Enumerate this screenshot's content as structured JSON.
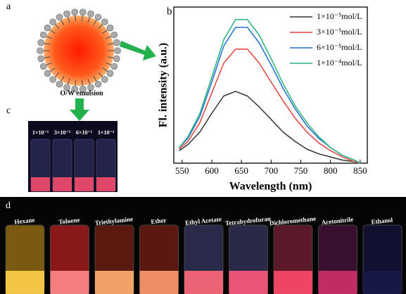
{
  "panel_a": {
    "letter": "a",
    "caption": "O/W emulsion"
  },
  "panel_b_letter": "b",
  "chart_data": {
    "type": "line",
    "x_label": "Wavelength (nm)",
    "y_label": "Fl. intensity (a.u.)",
    "x": [
      545,
      560,
      580,
      600,
      620,
      640,
      660,
      680,
      700,
      720,
      740,
      760,
      780,
      800,
      820,
      840,
      850
    ],
    "series": [
      {
        "name": "1×10⁻⁵mol/L",
        "color": "#333333",
        "values": [
          8,
          12,
          20,
          32,
          43,
          46,
          43,
          36,
          28,
          20,
          14,
          9,
          6,
          4,
          2,
          1,
          0
        ]
      },
      {
        "name": "3×10⁻⁵mol/L",
        "color": "#e8413c",
        "values": [
          9,
          14,
          26,
          45,
          64,
          73,
          73,
          64,
          52,
          40,
          29,
          20,
          13,
          8,
          4,
          1,
          0
        ]
      },
      {
        "name": "6×10⁻⁵mol/L",
        "color": "#1f6fd6",
        "values": [
          10,
          16,
          30,
          52,
          75,
          87,
          87,
          77,
          63,
          48,
          35,
          24,
          16,
          10,
          5,
          2,
          0
        ]
      },
      {
        "name": "1×10⁻⁴mol/L",
        "color": "#2ab27b",
        "values": [
          10,
          17,
          32,
          55,
          79,
          92,
          92,
          82,
          67,
          51,
          37,
          26,
          17,
          10,
          5,
          2,
          0
        ]
      }
    ],
    "xlim": [
      536,
      862
    ],
    "ylim": [
      0,
      100
    ],
    "xticks": [
      550,
      600,
      650,
      700,
      750,
      800,
      850
    ],
    "legend": "upper right"
  },
  "panel_c": {
    "letter": "c",
    "labels": [
      "1×10⁻⁵",
      "3×10⁻⁵",
      "6×10⁻⁵",
      "1×10⁻⁴"
    ]
  },
  "panel_d": {
    "letter": "d",
    "labels": [
      "Hexane",
      "Toluene",
      "Triethylamine",
      "Ether",
      "Ethyl Acetate",
      "Tetrahydrofuran",
      "Dichloromethane",
      "Acetonitrile",
      "Ethanol"
    ]
  }
}
